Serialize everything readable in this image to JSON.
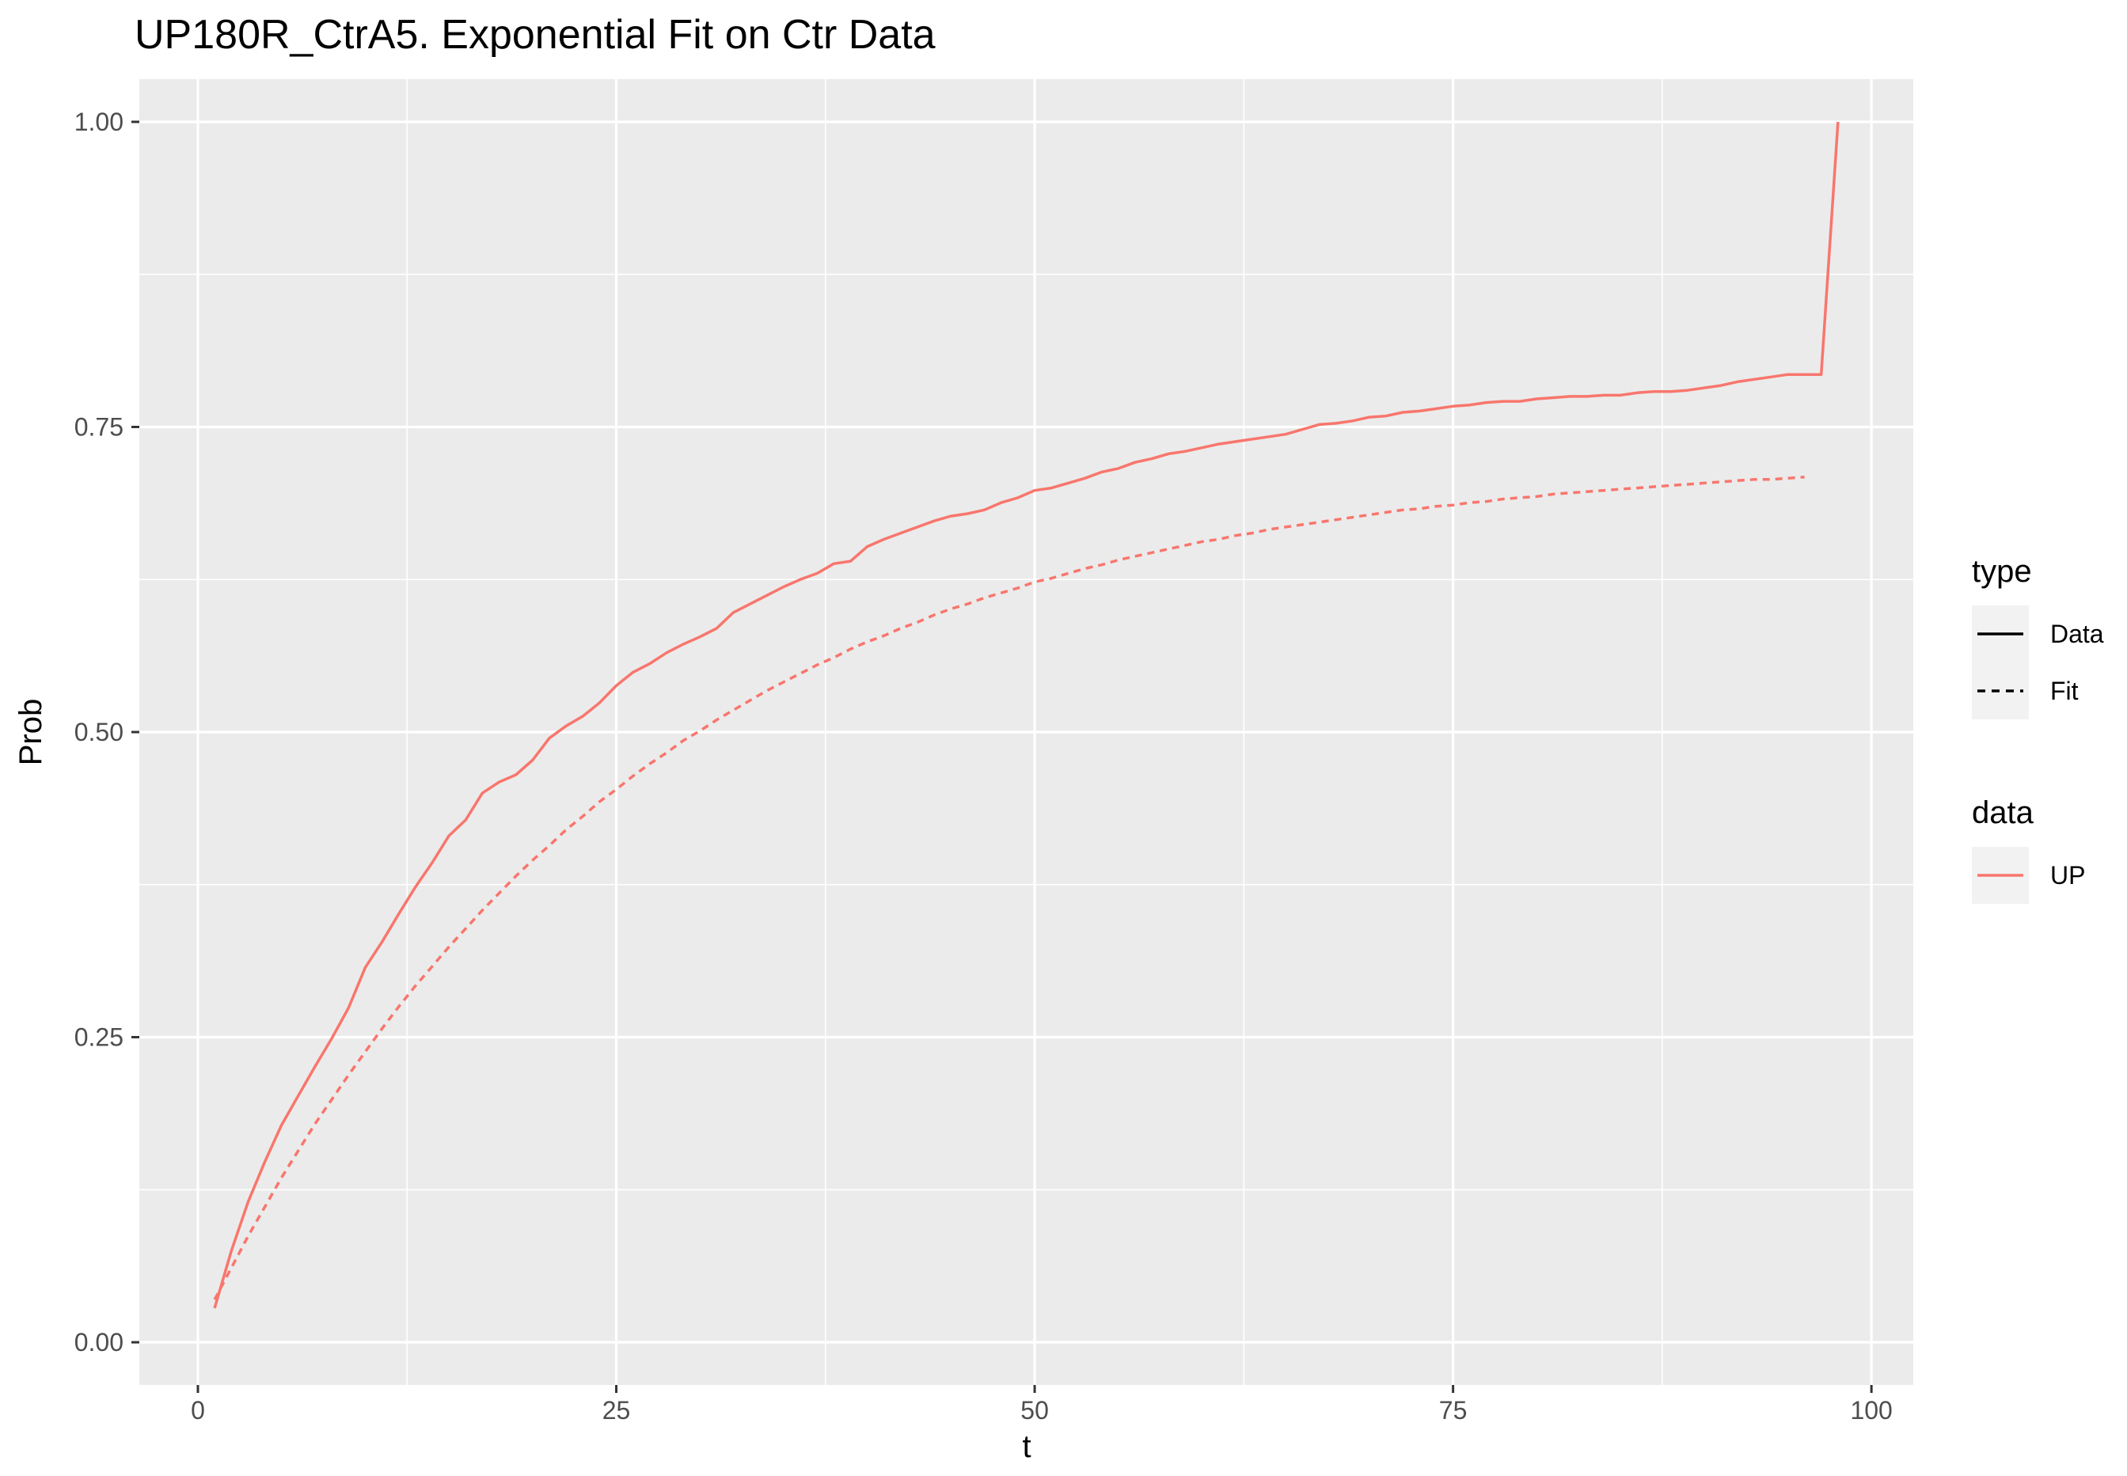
{
  "chart_data": {
    "type": "line",
    "title": "UP180R_CtrA5. Exponential Fit on Ctr Data",
    "xlabel": "t",
    "ylabel": "Prob",
    "xlim": [
      -3.5,
      102.5
    ],
    "ylim": [
      -0.035,
      1.035
    ],
    "x_ticks": [
      0,
      25,
      50,
      75,
      100
    ],
    "y_ticks": [
      0.0,
      0.25,
      0.5,
      0.75,
      1.0
    ],
    "y_tick_labels": [
      "0.00",
      "0.25",
      "0.50",
      "0.75",
      "1.00"
    ],
    "grid": true,
    "legend_position": "right",
    "legends": [
      {
        "title": "type",
        "entries": [
          {
            "label": "Data",
            "linetype": "solid"
          },
          {
            "label": "Fit",
            "linetype": "dashed"
          }
        ]
      },
      {
        "title": "data",
        "entries": [
          {
            "label": "UP",
            "color": "#F8766D"
          }
        ]
      }
    ],
    "colors": {
      "UP": "#F8766D",
      "panel": "#EBEBEB",
      "grid": "#FFFFFF"
    },
    "series": [
      {
        "name": "UP",
        "type": "Data",
        "x": [
          1,
          2,
          3,
          4,
          5,
          6,
          7,
          8,
          9,
          10,
          11,
          12,
          13,
          14,
          15,
          16,
          17,
          18,
          19,
          20,
          21,
          22,
          23,
          24,
          25,
          26,
          27,
          28,
          29,
          30,
          31,
          32,
          33,
          34,
          35,
          36,
          37,
          38,
          39,
          40,
          41,
          42,
          43,
          44,
          45,
          46,
          47,
          48,
          49,
          50,
          51,
          52,
          53,
          54,
          55,
          56,
          57,
          58,
          59,
          60,
          61,
          62,
          63,
          64,
          65,
          66,
          67,
          68,
          69,
          70,
          71,
          72,
          73,
          74,
          75,
          76,
          77,
          78,
          79,
          80,
          81,
          82,
          83,
          84,
          85,
          86,
          87,
          88,
          89,
          90,
          91,
          92,
          93,
          94,
          95,
          96,
          97,
          98
        ],
        "y": [
          0.028,
          0.075,
          0.115,
          0.148,
          0.178,
          0.202,
          0.226,
          0.249,
          0.274,
          0.307,
          0.328,
          0.351,
          0.373,
          0.393,
          0.415,
          0.428,
          0.45,
          0.459,
          0.465,
          0.477,
          0.495,
          0.505,
          0.513,
          0.524,
          0.538,
          0.549,
          0.556,
          0.565,
          0.572,
          0.578,
          0.585,
          0.598,
          0.605,
          0.612,
          0.619,
          0.625,
          0.63,
          0.638,
          0.64,
          0.652,
          0.658,
          0.663,
          0.668,
          0.673,
          0.677,
          0.679,
          0.682,
          0.688,
          0.692,
          0.698,
          0.7,
          0.704,
          0.708,
          0.713,
          0.716,
          0.721,
          0.724,
          0.728,
          0.73,
          0.733,
          0.736,
          0.738,
          0.74,
          0.742,
          0.744,
          0.748,
          0.752,
          0.753,
          0.755,
          0.758,
          0.759,
          0.762,
          0.763,
          0.765,
          0.767,
          0.768,
          0.77,
          0.771,
          0.771,
          0.773,
          0.774,
          0.775,
          0.775,
          0.776,
          0.776,
          0.778,
          0.779,
          0.779,
          0.78,
          0.782,
          0.784,
          0.787,
          0.789,
          0.791,
          0.793,
          0.793,
          0.793,
          1.0
        ]
      },
      {
        "name": "UP",
        "type": "Fit",
        "x": [
          1,
          2,
          3,
          4,
          5,
          6,
          7,
          8,
          9,
          10,
          11,
          12,
          13,
          14,
          15,
          16,
          17,
          18,
          19,
          20,
          21,
          22,
          23,
          24,
          25,
          26,
          27,
          28,
          29,
          30,
          31,
          32,
          33,
          34,
          35,
          36,
          37,
          38,
          39,
          40,
          41,
          42,
          43,
          44,
          45,
          46,
          47,
          48,
          49,
          50,
          51,
          52,
          53,
          54,
          55,
          56,
          57,
          58,
          59,
          60,
          61,
          62,
          63,
          64,
          65,
          66,
          67,
          68,
          69,
          70,
          71,
          72,
          73,
          74,
          75,
          76,
          77,
          78,
          79,
          80,
          81,
          82,
          83,
          84,
          85,
          86,
          87,
          88,
          89,
          90,
          91,
          92,
          93,
          94,
          95,
          96
        ],
        "y": [
          0.035,
          0.061,
          0.087,
          0.111,
          0.135,
          0.157,
          0.179,
          0.199,
          0.219,
          0.238,
          0.257,
          0.275,
          0.292,
          0.308,
          0.324,
          0.339,
          0.354,
          0.368,
          0.382,
          0.395,
          0.407,
          0.42,
          0.431,
          0.443,
          0.453,
          0.464,
          0.474,
          0.483,
          0.493,
          0.501,
          0.51,
          0.518,
          0.526,
          0.534,
          0.541,
          0.548,
          0.555,
          0.561,
          0.568,
          0.574,
          0.579,
          0.585,
          0.59,
          0.596,
          0.601,
          0.605,
          0.61,
          0.614,
          0.618,
          0.623,
          0.626,
          0.63,
          0.634,
          0.637,
          0.641,
          0.644,
          0.647,
          0.65,
          0.653,
          0.656,
          0.658,
          0.661,
          0.663,
          0.666,
          0.668,
          0.67,
          0.672,
          0.674,
          0.676,
          0.678,
          0.68,
          0.682,
          0.683,
          0.685,
          0.686,
          0.688,
          0.689,
          0.691,
          0.692,
          0.693,
          0.695,
          0.696,
          0.697,
          0.698,
          0.699,
          0.7,
          0.701,
          0.702,
          0.703,
          0.704,
          0.705,
          0.706,
          0.707,
          0.707,
          0.708,
          0.709
        ]
      }
    ]
  }
}
